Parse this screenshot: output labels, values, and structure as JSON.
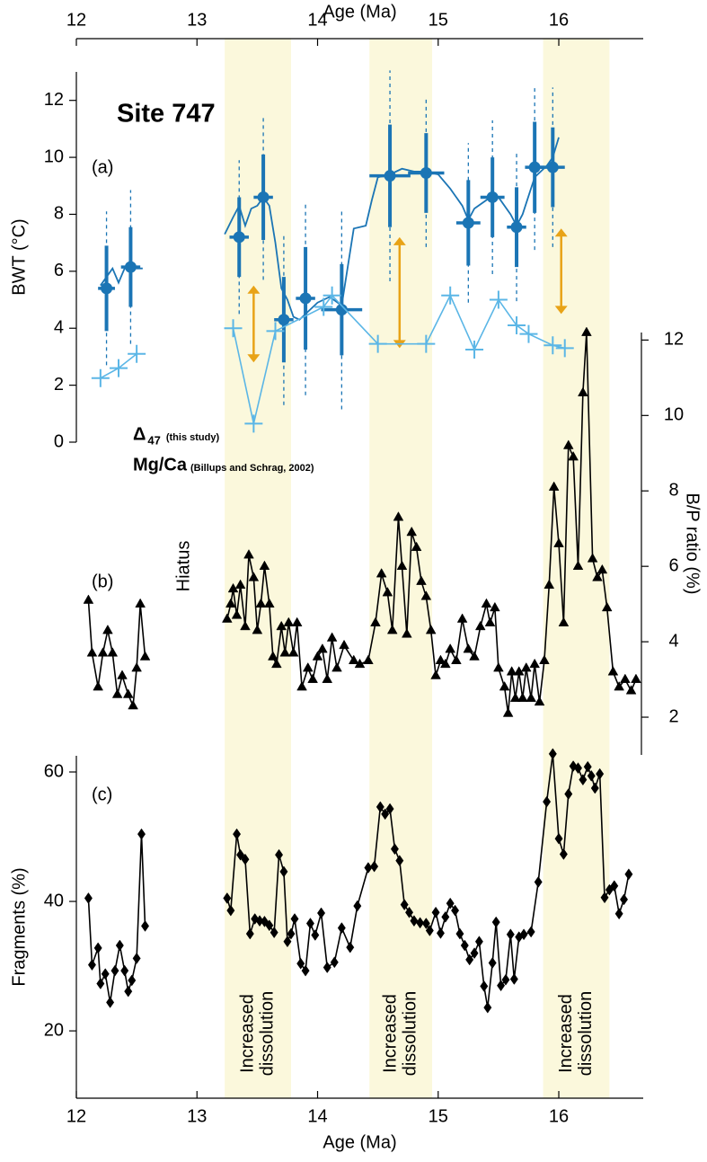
{
  "chart_data": [
    {
      "type": "line",
      "title": "Site 747",
      "panel_label": "(a)",
      "xlabel": "Age (Ma)",
      "ylabel": "BWT (°C)",
      "xlim": [
        12,
        16.7
      ],
      "xticks": [
        12,
        13,
        14,
        15,
        16
      ],
      "ylim": [
        0,
        13
      ],
      "yticks": [
        0,
        2,
        4,
        6,
        8,
        10,
        12
      ],
      "series": [
        {
          "name": "Δ",
          "name_subscript": "47",
          "source": "(this study)",
          "color": "#1b75b5",
          "type": "errorbar",
          "x": [
            12.25,
            12.45,
            13.35,
            13.55,
            13.72,
            13.9,
            14.2,
            14.6,
            14.9,
            15.25,
            15.45,
            15.65,
            15.8,
            15.95
          ],
          "values": [
            5.4,
            6.15,
            7.2,
            8.6,
            4.3,
            5.05,
            4.65,
            9.35,
            9.45,
            7.7,
            8.6,
            7.55,
            9.65,
            9.65
          ],
          "xerr": [
            0.07,
            0.08,
            0.08,
            0.08,
            0.08,
            0.08,
            0.17,
            0.17,
            0.15,
            0.1,
            0.1,
            0.08,
            0.08,
            0.1
          ],
          "yerr": [
            1.5,
            1.4,
            1.4,
            1.5,
            1.5,
            1.8,
            1.6,
            1.8,
            1.4,
            1.5,
            1.4,
            1.4,
            1.6,
            1.4
          ],
          "yerr_outer": [
            2.7,
            2.7,
            2.7,
            2.9,
            3.0,
            3.4,
            3.5,
            3.7,
            2.6,
            2.8,
            2.7,
            2.6,
            2.9,
            2.8
          ]
        },
        {
          "color": "#1b75b5",
          "type": "line",
          "x": [
            12.2,
            12.25,
            12.3,
            12.35,
            12.4,
            12.45,
            12.5,
            12.55,
            12.9,
            13.23,
            13.3,
            13.35,
            13.4,
            13.45,
            13.5,
            13.55,
            13.6,
            13.65,
            13.7,
            13.75,
            13.8,
            13.85,
            13.9,
            14.0,
            14.1,
            14.2,
            14.3,
            14.4,
            14.45,
            14.5,
            14.6,
            14.7,
            14.8,
            14.9,
            15.0,
            15.1,
            15.2,
            15.25,
            15.3,
            15.4,
            15.45,
            15.5,
            15.6,
            15.65,
            15.7,
            15.8,
            15.9,
            15.95,
            16.0
          ],
          "values": [
            5.5,
            5.8,
            6.1,
            5.6,
            6.1,
            6.2,
            6.1,
            6.1,
            null,
            7.3,
            7.9,
            8.3,
            7.6,
            8.2,
            8.3,
            8.6,
            8.3,
            7.0,
            5.4,
            5.0,
            4.4,
            4.3,
            4.5,
            4.9,
            5.1,
            4.8,
            7.5,
            7.6,
            8.5,
            9.3,
            9.4,
            9.6,
            9.5,
            9.5,
            9.4,
            8.9,
            8.3,
            7.8,
            8.2,
            8.5,
            8.7,
            8.6,
            8.0,
            7.6,
            8.0,
            9.3,
            9.7,
            10.0,
            10.7
          ]
        },
        {
          "name": "Mg/Ca",
          "source": "(Billups and Schrag, 2002)",
          "color": "#5bb6e6",
          "type": "line",
          "marker": "cross",
          "x": [
            12.2,
            12.35,
            12.5,
            12.9,
            13.3,
            13.47,
            13.65,
            14.05,
            14.12,
            14.5,
            14.9,
            15.1,
            15.3,
            15.5,
            15.65,
            15.75,
            15.95,
            16.05
          ],
          "values": [
            2.25,
            2.6,
            3.1,
            null,
            4.0,
            0.65,
            3.9,
            4.75,
            5.15,
            3.45,
            3.45,
            5.15,
            3.25,
            5.0,
            4.1,
            3.8,
            3.4,
            3.3
          ]
        }
      ],
      "arrows": {
        "color": "#e8a317",
        "x": [
          13.47,
          14.68,
          16.02
        ],
        "low": [
          2.8,
          3.3,
          4.5
        ],
        "high": [
          5.5,
          7.2,
          7.5
        ]
      }
    },
    {
      "type": "line",
      "panel_label": "(b)",
      "ylabel": "B/P ratio (%)",
      "yaxis_side": "right",
      "annotation": "Hiatus",
      "xlim": [
        12,
        16.7
      ],
      "ylim": [
        1,
        12.2
      ],
      "yticks": [
        2,
        4,
        6,
        8,
        10,
        12
      ],
      "series": [
        {
          "color": "#000000",
          "type": "line",
          "marker": "triangle",
          "x": [
            12.1,
            12.13,
            12.18,
            12.22,
            12.26,
            12.3,
            12.34,
            12.38,
            12.43,
            12.47,
            12.5,
            12.53,
            12.57,
            12.9,
            13.25,
            13.28,
            13.3,
            13.33,
            13.36,
            13.4,
            13.43,
            13.47,
            13.5,
            13.53,
            13.56,
            13.6,
            13.63,
            13.66,
            13.7,
            13.73,
            13.76,
            13.8,
            13.83,
            13.87,
            13.92,
            13.96,
            14.0,
            14.04,
            14.08,
            14.12,
            14.16,
            14.22,
            14.3,
            14.35,
            14.42,
            14.48,
            14.53,
            14.58,
            14.62,
            14.67,
            14.7,
            14.74,
            14.78,
            14.82,
            14.86,
            14.9,
            14.94,
            14.98,
            15.02,
            15.06,
            15.1,
            15.15,
            15.2,
            15.25,
            15.3,
            15.35,
            15.4,
            15.43,
            15.47,
            15.5,
            15.55,
            15.58,
            15.61,
            15.64,
            15.67,
            15.7,
            15.73,
            15.77,
            15.8,
            15.84,
            15.88,
            15.92,
            15.96,
            16.0,
            16.04,
            16.08,
            16.12,
            16.16,
            16.2,
            16.23,
            16.28,
            16.32,
            16.36,
            16.4,
            16.45,
            16.5,
            16.55,
            16.6,
            16.64
          ],
          "values": [
            5.1,
            3.7,
            2.8,
            3.7,
            4.3,
            3.7,
            2.6,
            3.1,
            2.6,
            2.3,
            3.3,
            5.0,
            3.6,
            null,
            4.6,
            5.0,
            5.4,
            4.7,
            5.5,
            4.4,
            6.3,
            5.7,
            4.3,
            5.0,
            6.0,
            5.0,
            3.6,
            3.4,
            4.4,
            3.7,
            4.5,
            3.7,
            4.5,
            2.8,
            3.3,
            3.0,
            3.6,
            3.8,
            3.0,
            4.1,
            3.3,
            3.9,
            3.5,
            3.4,
            3.5,
            4.5,
            5.8,
            5.3,
            4.3,
            7.3,
            6.0,
            4.2,
            6.9,
            6.5,
            5.6,
            5.2,
            4.3,
            3.1,
            3.5,
            3.4,
            3.8,
            3.5,
            4.6,
            3.8,
            3.6,
            4.4,
            5.0,
            4.5,
            4.9,
            3.3,
            2.8,
            2.1,
            3.2,
            2.5,
            3.2,
            2.5,
            3.3,
            2.5,
            3.4,
            2.4,
            3.5,
            5.5,
            8.1,
            6.6,
            4.5,
            9.2,
            8.9,
            6.0,
            10.6,
            12.2,
            6.2,
            5.7,
            5.9,
            4.9,
            3.2,
            2.8,
            3.0,
            2.7,
            3.0
          ]
        }
      ]
    },
    {
      "type": "line",
      "panel_label": "(c)",
      "xlabel": "Age (Ma)",
      "ylabel": "Fragments (%)",
      "xlim": [
        12,
        16.7
      ],
      "xticks": [
        12,
        13,
        14,
        15,
        16
      ],
      "ylim": [
        9.6,
        62.5
      ],
      "yticks": [
        20,
        40,
        60
      ],
      "series": [
        {
          "color": "#000000",
          "type": "line",
          "marker": "diamond",
          "x": [
            12.1,
            12.13,
            12.18,
            12.2,
            12.24,
            12.28,
            12.32,
            12.36,
            12.4,
            12.43,
            12.46,
            12.5,
            12.54,
            12.57,
            12.9,
            13.25,
            13.28,
            13.33,
            13.36,
            13.4,
            13.44,
            13.48,
            13.52,
            13.56,
            13.6,
            13.64,
            13.68,
            13.72,
            13.75,
            13.78,
            13.81,
            13.86,
            13.9,
            13.94,
            13.98,
            14.03,
            14.08,
            14.14,
            14.2,
            14.27,
            14.33,
            14.42,
            14.47,
            14.52,
            14.56,
            14.6,
            14.64,
            14.68,
            14.72,
            14.76,
            14.8,
            14.85,
            14.9,
            14.93,
            14.98,
            15.02,
            15.06,
            15.1,
            15.14,
            15.18,
            15.22,
            15.26,
            15.3,
            15.34,
            15.38,
            15.41,
            15.45,
            15.48,
            15.52,
            15.56,
            15.6,
            15.63,
            15.67,
            15.71,
            15.77,
            15.83,
            15.9,
            15.95,
            16.0,
            16.04,
            16.08,
            16.12,
            16.16,
            16.2,
            16.24,
            16.27,
            16.3,
            16.34,
            16.38,
            16.42,
            16.46,
            16.5,
            16.54,
            16.58
          ],
          "values": [
            40.5,
            30.2,
            32.8,
            27.3,
            28.8,
            24.4,
            29.3,
            33.2,
            29.3,
            26.1,
            27.8,
            31.2,
            50.4,
            36.2,
            null,
            40.5,
            38.6,
            50.4,
            47.2,
            46.5,
            35.0,
            37.3,
            37.0,
            36.9,
            36.3,
            35.2,
            47.2,
            44.6,
            33.8,
            35.0,
            37.3,
            30.4,
            29.3,
            36.6,
            34.8,
            38.2,
            29.8,
            30.6,
            35.9,
            32.9,
            39.3,
            45.2,
            45.4,
            54.6,
            53.5,
            54.3,
            48.1,
            46.3,
            39.5,
            38.3,
            37.0,
            36.7,
            36.6,
            35.5,
            38.3,
            35.1,
            37.6,
            39.7,
            38.6,
            35.0,
            33.2,
            31.0,
            32.0,
            33.8,
            26.9,
            23.6,
            30.5,
            36.8,
            27.0,
            27.9,
            34.9,
            28.0,
            34.5,
            34.9,
            35.3,
            43.0,
            55.4,
            62.8,
            49.7,
            47.3,
            56.6,
            60.9,
            60.6,
            58.8,
            60.8,
            59.4,
            57.5,
            59.7,
            40.6,
            41.8,
            42.4,
            38.1,
            40.3,
            44.2
          ]
        }
      ]
    }
  ],
  "shading": {
    "color": "#fbf8dc",
    "regions": [
      {
        "start": 13.23,
        "end": 13.78,
        "label": [
          "Increased",
          "dissolution"
        ]
      },
      {
        "start": 14.43,
        "end": 14.95,
        "label": [
          "Increased",
          "dissolution"
        ]
      },
      {
        "start": 15.87,
        "end": 16.42,
        "label": [
          "Increased",
          "dissolution"
        ]
      }
    ]
  }
}
